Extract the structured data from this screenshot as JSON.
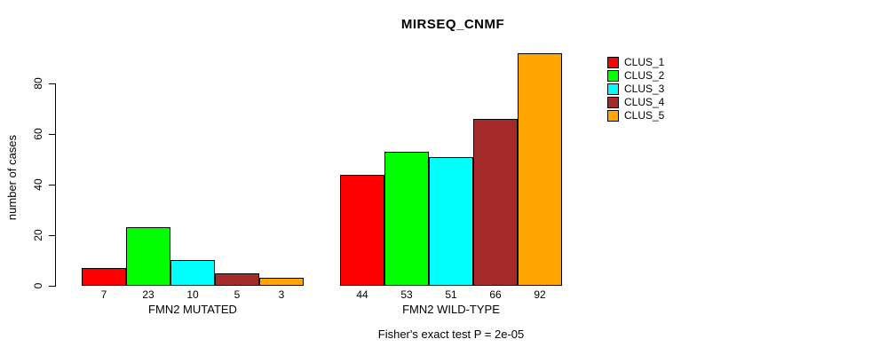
{
  "chart_data": {
    "type": "bar",
    "title": "MIRSEQ_CNMF",
    "xlabel": "",
    "ylabel": "number of cases",
    "ylim": [
      0,
      92
    ],
    "yticks": [
      0,
      20,
      40,
      60,
      80
    ],
    "grid": false,
    "categories": [
      "FMN2 MUTATED",
      "FMN2 WILD-TYPE"
    ],
    "series": [
      {
        "name": "CLUS_1",
        "color": "#FF0000",
        "values": [
          7,
          44
        ]
      },
      {
        "name": "CLUS_2",
        "color": "#00FF00",
        "values": [
          23,
          53
        ]
      },
      {
        "name": "CLUS_3",
        "color": "#00FFFF",
        "values": [
          10,
          51
        ]
      },
      {
        "name": "CLUS_4",
        "color": "#A52A2A",
        "values": [
          5,
          66
        ]
      },
      {
        "name": "CLUS_5",
        "color": "#FFA500",
        "values": [
          3,
          92
        ]
      }
    ],
    "bar_labels": [
      [
        7,
        23,
        10,
        5,
        3
      ],
      [
        44,
        53,
        51,
        66,
        92
      ]
    ],
    "legend": [
      "CLUS_1",
      "CLUS_2",
      "CLUS_3",
      "CLUS_4",
      "CLUS_5"
    ],
    "legend_position": "right",
    "annotation": "Fisher's exact test P = 2e-05",
    "bar_border_color": "#000000",
    "background_color": "#FFFFFF"
  }
}
